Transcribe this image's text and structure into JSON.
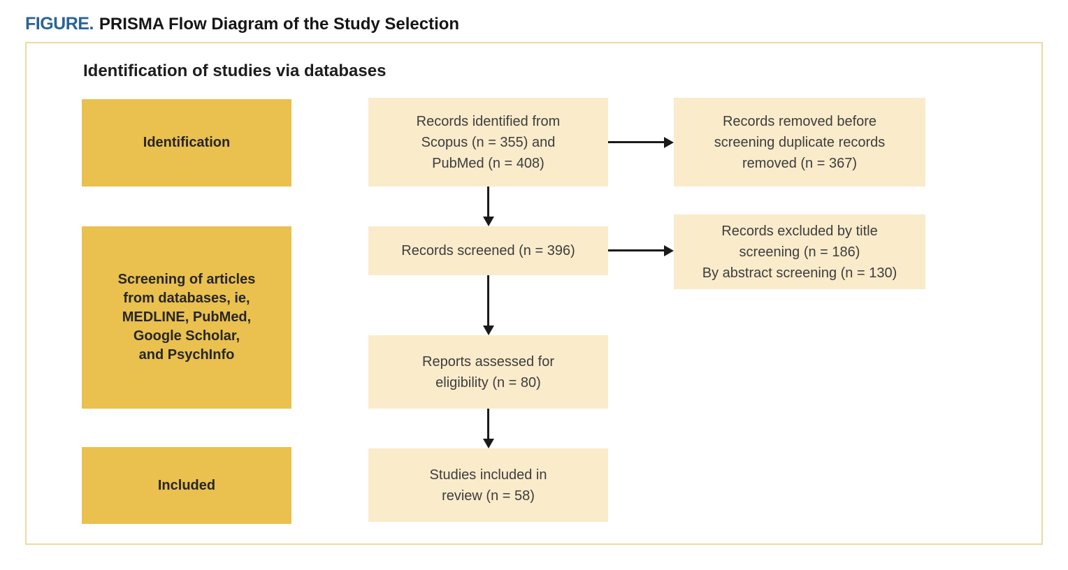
{
  "figure": {
    "label": "FIGURE.",
    "title": "PRISMA Flow Diagram of the Study Selection"
  },
  "heading": "Identification of studies via databases",
  "stages": {
    "identification": {
      "lines": [
        "Identification"
      ]
    },
    "screening": {
      "lines": [
        "Screening of articles",
        "from databases, ie,",
        "MEDLINE, PubMed,",
        "Google Scholar,",
        "and PsychInfo"
      ]
    },
    "included": {
      "lines": [
        "Included"
      ]
    }
  },
  "boxes": {
    "records_identified": {
      "lines": [
        "Records identified from",
        "Scopus (n = 355) and",
        "PubMed (n = 408)"
      ],
      "n_scopus": 355,
      "n_pubmed": 408
    },
    "records_screened": {
      "lines": [
        "Records screened (n = 396)"
      ],
      "n": 396
    },
    "reports_assessed": {
      "lines": [
        "Reports assessed for",
        "eligibility (n = 80)"
      ],
      "n": 80
    },
    "studies_included": {
      "lines": [
        "Studies included in",
        "review (n = 58)"
      ],
      "n": 58
    },
    "records_removed": {
      "lines": [
        "Records removed before",
        "screening duplicate records",
        "removed (n = 367)"
      ],
      "n": 367
    },
    "records_excluded": {
      "lines": [
        "Records excluded by title",
        "screening (n = 186)",
        "By abstract screening (n = 130)"
      ],
      "n_title": 186,
      "n_abstract": 130
    }
  },
  "colors": {
    "figure_label_blue": "#2A6496",
    "stage_fill": "#EAC04E",
    "flow_fill": "#FAEBCB",
    "panel_border": "#EDD9A2",
    "arrow": "#1A1A1A",
    "text_dark": "#3D3D3D"
  }
}
